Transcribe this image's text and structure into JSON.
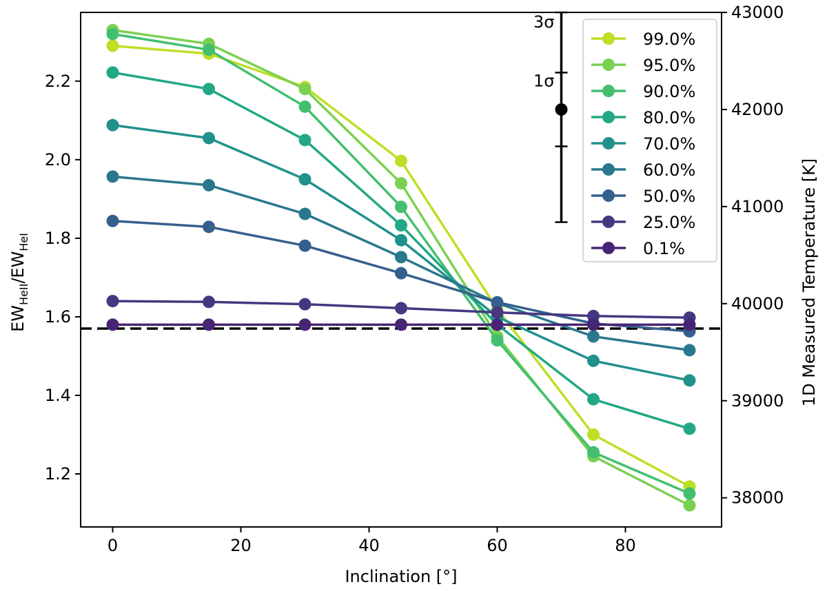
{
  "chart_data": {
    "type": "line",
    "xlabel": "Inclination [°]",
    "ylabel_main": "EW",
    "ylabel_sub1": "HeII",
    "ylabel_sep": "/EW",
    "ylabel_sub2": "HeI",
    "y2label": "1D Measured Temperature [K]",
    "xlim": [
      -5,
      95
    ],
    "ylim": [
      1.065,
      2.375
    ],
    "y2lim": [
      37700,
      43000
    ],
    "x_ticks": [
      "0",
      "20",
      "40",
      "60",
      "80"
    ],
    "y_ticks": [
      "1.2",
      "1.4",
      "1.6",
      "1.8",
      "2.0",
      "2.2"
    ],
    "y2_ticks": [
      "38000",
      "39000",
      "40000",
      "41000",
      "42000",
      "43000"
    ],
    "x": [
      0,
      15,
      30,
      45,
      60,
      75,
      90
    ],
    "series": [
      {
        "name": "99.0%",
        "color": "#bddf26",
        "values": [
          2.29,
          2.27,
          2.185,
          1.997,
          1.62,
          1.3,
          1.168
        ]
      },
      {
        "name": "95.0%",
        "color": "#7ad151",
        "values": [
          2.33,
          2.295,
          2.18,
          1.94,
          1.55,
          1.245,
          1.12
        ]
      },
      {
        "name": "90.0%",
        "color": "#44bf70",
        "values": [
          2.32,
          2.28,
          2.135,
          1.88,
          1.54,
          1.255,
          1.15
        ]
      },
      {
        "name": "80.0%",
        "color": "#22a884",
        "values": [
          2.222,
          2.18,
          2.05,
          1.833,
          1.58,
          1.39,
          1.315
        ]
      },
      {
        "name": "70.0%",
        "color": "#21918c",
        "values": [
          2.088,
          2.055,
          1.95,
          1.795,
          1.6,
          1.488,
          1.438
        ]
      },
      {
        "name": "60.0%",
        "color": "#2a788e",
        "values": [
          1.957,
          1.935,
          1.862,
          1.752,
          1.635,
          1.55,
          1.515
        ]
      },
      {
        "name": "50.0%",
        "color": "#355f8d",
        "values": [
          1.844,
          1.829,
          1.781,
          1.711,
          1.637,
          1.583,
          1.563
        ]
      },
      {
        "name": "25.0%",
        "color": "#453781",
        "values": [
          1.64,
          1.638,
          1.632,
          1.622,
          1.611,
          1.602,
          1.598
        ]
      },
      {
        "name": "0.1%",
        "color": "#482475",
        "values": [
          1.58,
          1.58,
          1.58,
          1.58,
          1.58,
          1.58,
          1.58
        ]
      }
    ],
    "reference_line": {
      "y": 1.57,
      "style": "dashed",
      "color": "#000000"
    },
    "error_bar": {
      "x": 70,
      "temperature": 42000,
      "inner_range": [
        41620,
        42380
      ],
      "outer_range": [
        40840,
        43000
      ],
      "labels": [
        "3σ",
        "1σ"
      ]
    },
    "legend": {
      "placement": "top-right"
    },
    "grid": false
  }
}
